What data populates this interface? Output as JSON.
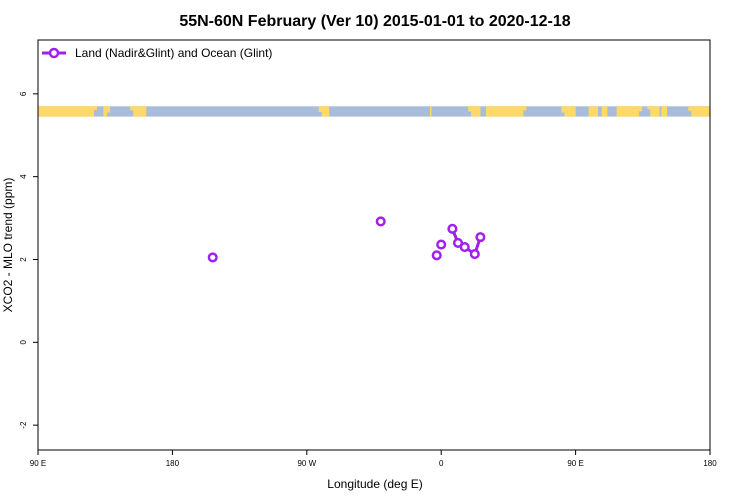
{
  "chart_data": {
    "type": "line",
    "title": "55N-60N February (Ver 10)   2015-01-01 to 2020-12-18",
    "xlabel": "Longitude (deg E)",
    "ylabel": "XCO2 - MLO trend (ppm)",
    "xlim": [
      90,
      450
    ],
    "ylim": [
      -2.6,
      7.3
    ],
    "x_ticks": [
      {
        "value": 90,
        "label": "90 E"
      },
      {
        "value": 162,
        "label": "180"
      },
      {
        "value": 234,
        "label": "90 W"
      },
      {
        "value": 306,
        "label": "0"
      },
      {
        "value": 378,
        "label": "90 E"
      },
      {
        "value": 450,
        "label": "180"
      }
    ],
    "y_ticks": [
      {
        "value": -2,
        "label": "-2"
      },
      {
        "value": 0,
        "label": "0"
      },
      {
        "value": 2,
        "label": "2"
      },
      {
        "value": 4,
        "label": "4"
      },
      {
        "value": 6,
        "label": "6"
      }
    ],
    "series": [
      {
        "name": "Land (Nadir&Glint) and Ocean (Glint)",
        "color": "#a020f0",
        "points": [
          {
            "x": 183.6,
            "y": 2.05
          },
          {
            "x": 273.6,
            "y": 2.92
          },
          {
            "x": 303.6,
            "y": 2.1
          },
          {
            "x": 306.0,
            "y": 2.36
          },
          {
            "x": 312.0,
            "y": 2.74
          },
          {
            "x": 315.0,
            "y": 2.4
          },
          {
            "x": 318.6,
            "y": 2.3
          },
          {
            "x": 324.0,
            "y": 2.13
          },
          {
            "x": 327.0,
            "y": 2.54
          }
        ],
        "line_segments": [
          [
            4,
            5
          ],
          [
            5,
            6
          ],
          [
            6,
            7
          ],
          [
            7,
            8
          ]
        ]
      }
    ],
    "map_strip": {
      "y_range": [
        5.45,
        5.7
      ],
      "land_color": "#ffd966",
      "ocean_color": "#a9bcd9"
    },
    "legend": {
      "position": "top-left"
    },
    "grid": false
  }
}
